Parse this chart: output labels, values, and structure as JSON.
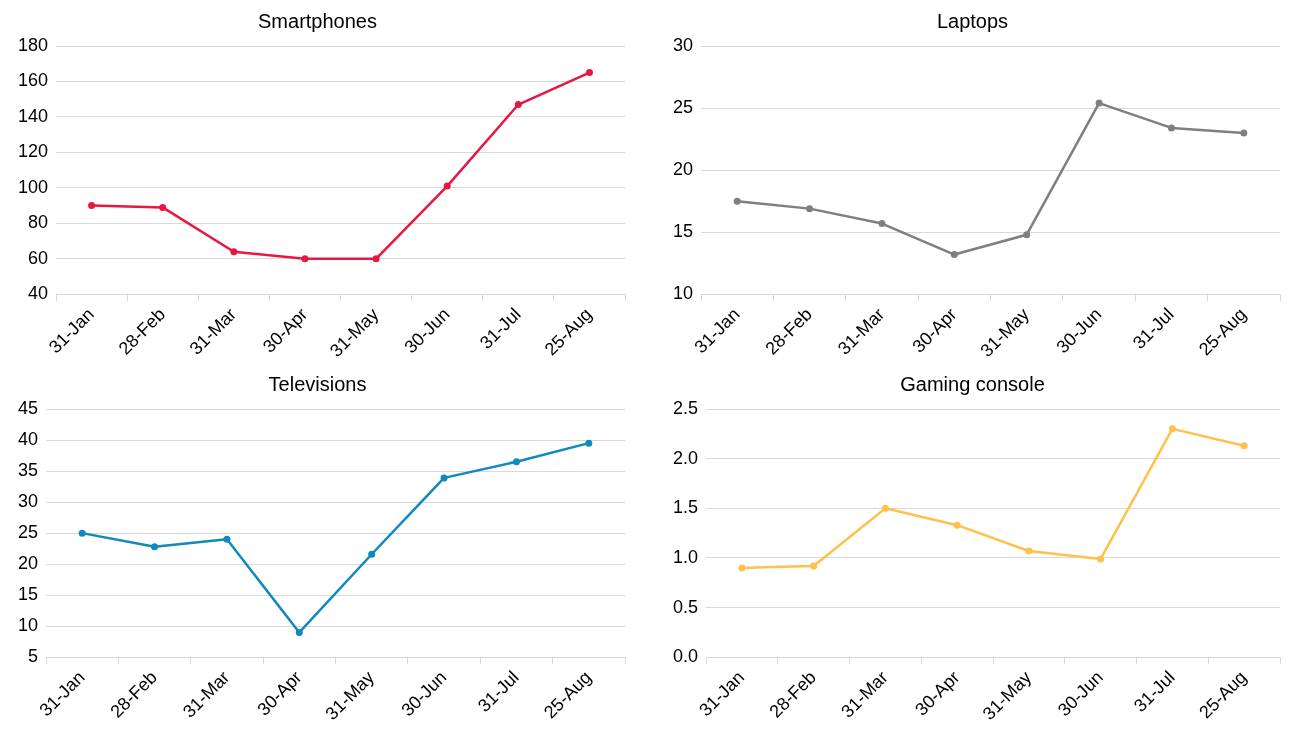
{
  "chart_data": [
    {
      "type": "line",
      "title": "Smartphones",
      "categories": [
        "31-Jan",
        "28-Feb",
        "31-Mar",
        "30-Apr",
        "31-May",
        "30-Jun",
        "31-Jul",
        "25-Aug"
      ],
      "series": [
        {
          "color": "#e8173f",
          "values": [
            90,
            89,
            64,
            60,
            60,
            101,
            147,
            165
          ]
        }
      ],
      "ylim": [
        40,
        180
      ],
      "yticks": [
        40,
        60,
        80,
        100,
        120,
        140,
        160,
        180
      ],
      "grid": "y",
      "marker": "circle"
    },
    {
      "type": "line",
      "title": "Laptops",
      "categories": [
        "31-Jan",
        "28-Feb",
        "31-Mar",
        "30-Apr",
        "31-May",
        "30-Jun",
        "31-Jul",
        "25-Aug"
      ],
      "series": [
        {
          "color": "#7f7f7f",
          "values": [
            17.5,
            16.9,
            15.7,
            13.2,
            14.8,
            25.4,
            23.4,
            23.0
          ]
        }
      ],
      "ylim": [
        10,
        30
      ],
      "yticks": [
        10,
        15,
        20,
        25,
        30
      ],
      "grid": "y",
      "marker": "circle"
    },
    {
      "type": "line",
      "title": "Televisions",
      "categories": [
        "31-Jan",
        "28-Feb",
        "31-Mar",
        "30-Apr",
        "31-May",
        "30-Jun",
        "31-Jul",
        "25-Aug"
      ],
      "series": [
        {
          "color": "#1089bd",
          "values": [
            25,
            22.8,
            24,
            9,
            21.6,
            33.9,
            36.5,
            39.5
          ]
        }
      ],
      "ylim": [
        5,
        45
      ],
      "yticks": [
        5,
        10,
        15,
        20,
        25,
        30,
        35,
        40,
        45
      ],
      "grid": "y",
      "marker": "circle"
    },
    {
      "type": "line",
      "title": "Gaming console",
      "categories": [
        "31-Jan",
        "28-Feb",
        "31-Mar",
        "30-Apr",
        "31-May",
        "30-Jun",
        "31-Jul",
        "25-Aug"
      ],
      "series": [
        {
          "color": "#ffc04c",
          "values": [
            0.9,
            0.92,
            1.5,
            1.33,
            1.07,
            0.99,
            2.3,
            2.13
          ]
        }
      ],
      "ylim": [
        0,
        2.5
      ],
      "yticks": [
        {
          "value": 0,
          "label": "0.0"
        },
        {
          "value": 0.5,
          "label": "0.5"
        },
        {
          "value": 1,
          "label": "1.0"
        },
        {
          "value": 1.5,
          "label": "1.5"
        },
        {
          "value": 2,
          "label": "2.0"
        },
        {
          "value": 2.5,
          "label": "2.5"
        }
      ],
      "grid": "y",
      "marker": "circle"
    }
  ]
}
